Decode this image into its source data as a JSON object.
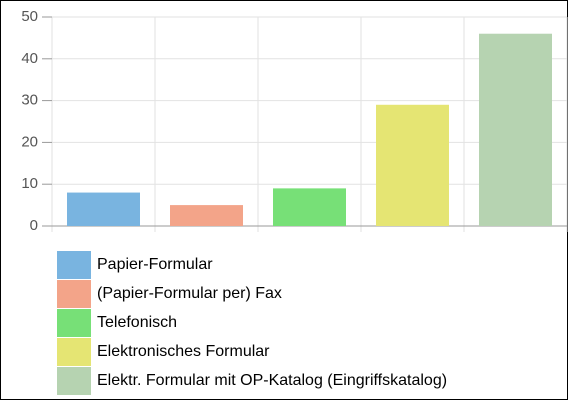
{
  "chart_data": {
    "type": "bar",
    "categories": [
      "Papier-Formular",
      "(Papier-Formular per) Fax",
      "Telefonisch",
      "Elektronisches Formular",
      "Elektr. Formular mit OP-Katalog (Eingriffskatalog)"
    ],
    "values": [
      8,
      5,
      9,
      29,
      46
    ],
    "colors": [
      "#79b4e0",
      "#f3a489",
      "#77e077",
      "#e5e573",
      "#b6d3b1"
    ],
    "ylim": [
      0,
      50
    ],
    "yticks": [
      0,
      10,
      20,
      30,
      40,
      50
    ],
    "grid": true,
    "legend": "bottom"
  }
}
